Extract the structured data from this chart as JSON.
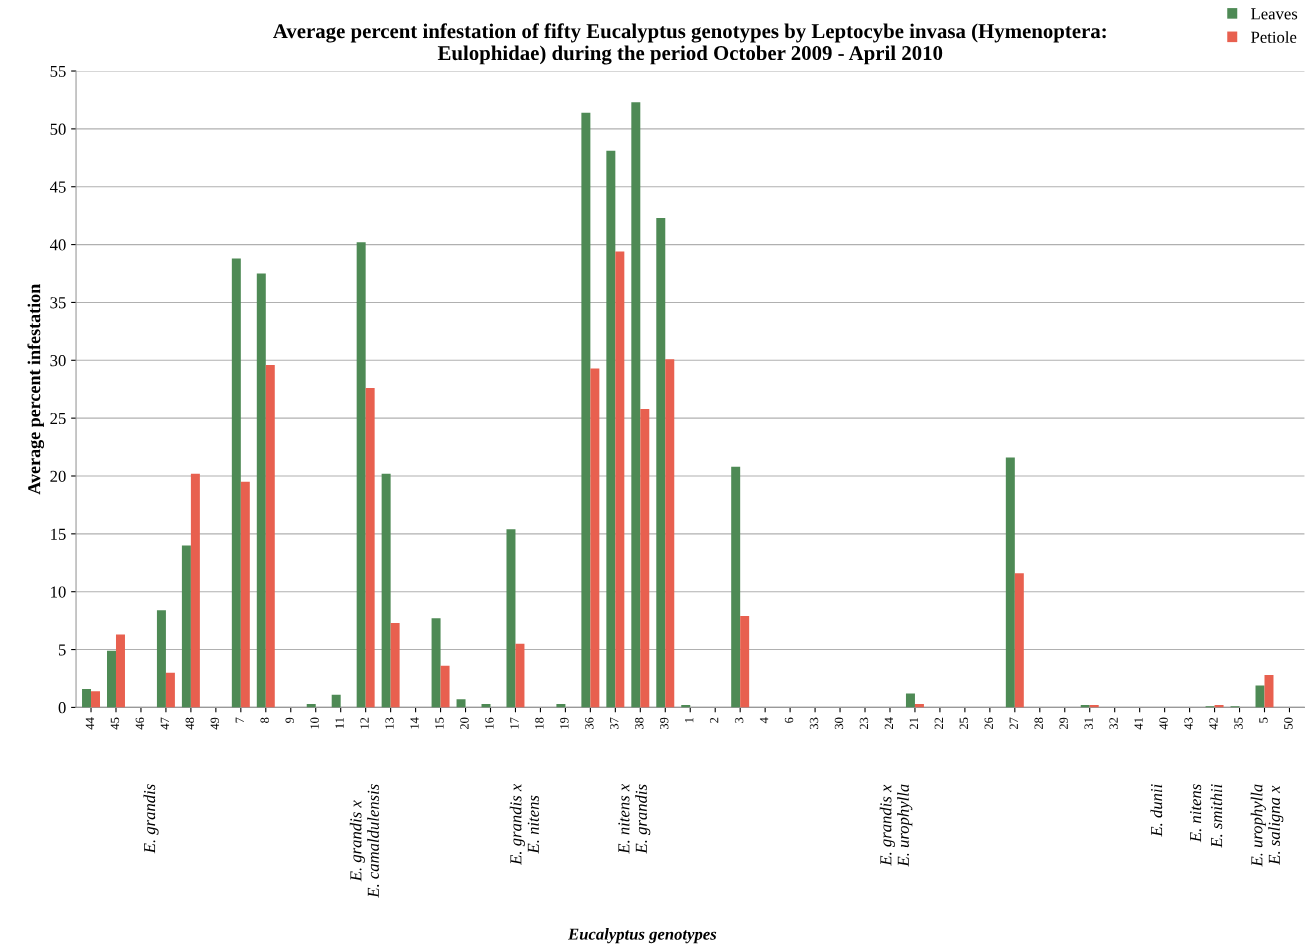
{
  "chart_data": {
    "type": "bar",
    "title": "Average percent infestation of fifty Eucalyptus genotypes by Leptocybe invasa (Hymenoptera:\nEulophidae) during the period October 2009 - April 2010",
    "ylabel": "Average percent infestation",
    "categories": [
      "44",
      "45",
      "46",
      "47",
      "48",
      "49",
      "7",
      "8",
      "9",
      "10",
      "11",
      "12",
      "13",
      "14",
      "15",
      "20",
      "16",
      "17",
      "18",
      "19",
      "36",
      "37",
      "38",
      "39",
      "1",
      "2",
      "3",
      "4",
      "6",
      "33",
      "30",
      "23",
      "24",
      "21",
      "22",
      "25",
      "26",
      "27",
      "28",
      "29",
      "31",
      "32",
      "41",
      "40",
      "43",
      "42",
      "35",
      "5",
      "50"
    ],
    "series": [
      {
        "name": "Leaves",
        "color": "#4e8a55",
        "values": [
          1.6,
          4.9,
          0,
          8.4,
          14.0,
          0,
          38.8,
          37.5,
          0,
          0.3,
          1.1,
          40.2,
          20.2,
          0,
          7.7,
          0.7,
          0.3,
          15.4,
          0,
          0.3,
          51.4,
          48.1,
          52.3,
          42.3,
          0.2,
          0,
          20.8,
          0,
          0,
          0,
          0,
          0,
          0,
          1.2,
          0,
          0,
          0,
          21.6,
          0,
          0,
          0.2,
          0,
          0,
          0,
          0,
          0.1,
          0.1,
          1.9,
          0
        ]
      },
      {
        "name": "Petiole",
        "color": "#e8604f",
        "values": [
          1.4,
          6.3,
          0,
          3.0,
          20.2,
          0,
          19.5,
          29.6,
          0,
          0,
          0,
          27.6,
          7.3,
          0,
          3.6,
          0,
          0,
          5.5,
          0,
          0,
          29.3,
          39.4,
          25.8,
          30.1,
          0,
          0,
          7.9,
          0,
          0,
          0,
          0,
          0,
          0,
          0.3,
          0,
          0,
          0,
          11.6,
          0,
          0,
          0.2,
          0,
          0,
          0,
          0,
          0.2,
          0,
          2.8,
          0
        ]
      }
    ],
    "ylim": [
      0,
      55
    ],
    "yticks": [
      0,
      5,
      10,
      15,
      20,
      25,
      30,
      35,
      40,
      45,
      50,
      55
    ],
    "grid": "y",
    "legend": "top right",
    "annotations": [
      "E. grandis",
      "E. grandis x\nE. camaldulensis",
      "E. grandis x\nE. nitens",
      "E. nitens x\nE. grandis",
      "E. grandis x\nE. urophylla",
      "E. dunii",
      "E. nitens",
      "E. smithii",
      "E. urophylla\nE. saligna x",
      "Eucalyptus genotypes"
    ]
  }
}
